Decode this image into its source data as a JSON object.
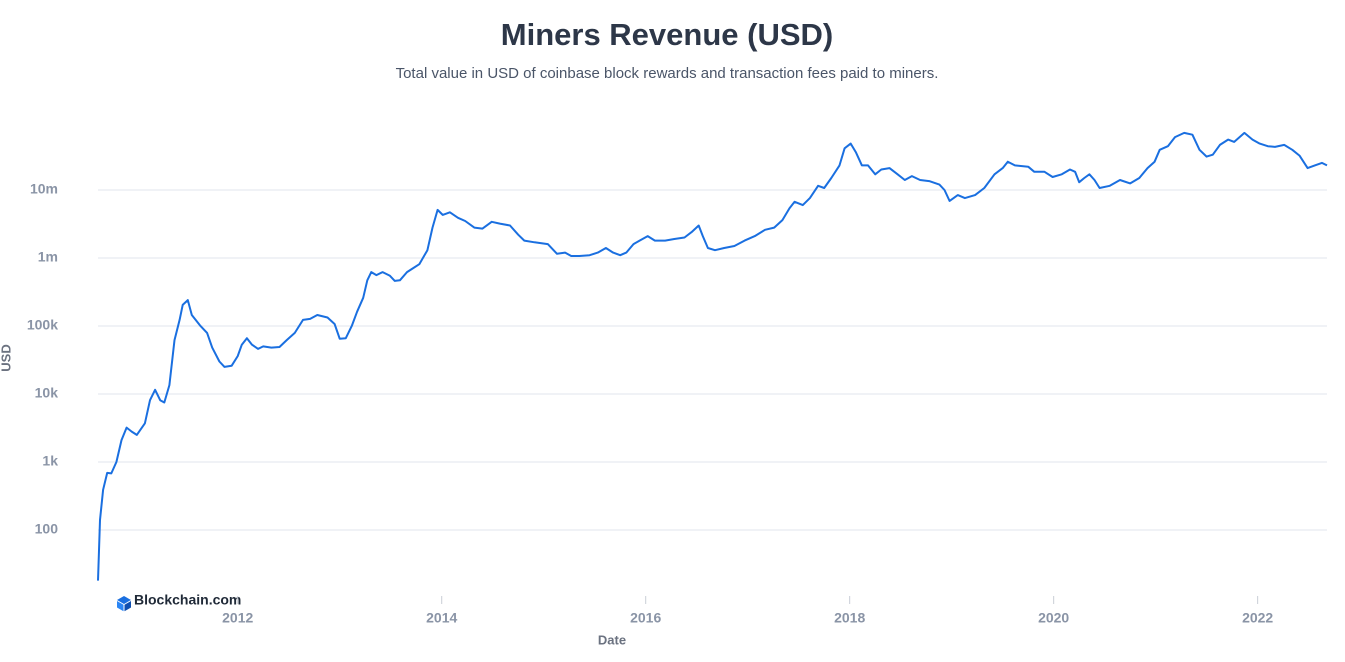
{
  "chart_data": {
    "type": "line",
    "title": "Miners Revenue (USD)",
    "subtitle": "Total value in USD of coinbase block rewards and transaction fees paid to miners.",
    "y_label": "USD",
    "x_label": "Date",
    "watermark": "Blockchain.com",
    "color": "#1a6fe0",
    "log_scale": true,
    "grid": true,
    "xlim": [
      2010.63,
      2022.68
    ],
    "xticks": [
      2012,
      2014,
      2016,
      2018,
      2020,
      2022
    ],
    "ylim": [
      15,
      70000000
    ],
    "yticks": [
      100,
      {
        "value": 1000,
        "label": "1k"
      },
      {
        "value": 10000,
        "label": "10k"
      },
      {
        "value": 100000,
        "label": "100k"
      },
      {
        "value": 1000000,
        "label": "1m"
      },
      {
        "value": 10000000,
        "label": "10m"
      }
    ],
    "x": [
      2010.63,
      2010.65,
      2010.68,
      2010.72,
      2010.76,
      2010.81,
      2010.86,
      2010.91,
      2010.96,
      2011.01,
      2011.09,
      2011.14,
      2011.19,
      2011.24,
      2011.28,
      2011.33,
      2011.38,
      2011.43,
      2011.46,
      2011.51,
      2011.55,
      2011.63,
      2011.7,
      2011.75,
      2011.82,
      2011.87,
      2011.94,
      2012.0,
      2012.04,
      2012.09,
      2012.14,
      2012.2,
      2012.25,
      2012.33,
      2012.41,
      2012.48,
      2012.56,
      2012.64,
      2012.71,
      2012.78,
      2012.88,
      2012.95,
      2013.0,
      2013.06,
      2013.12,
      2013.17,
      2013.23,
      2013.27,
      2013.31,
      2013.36,
      2013.42,
      2013.49,
      2013.54,
      2013.59,
      2013.66,
      2013.72,
      2013.78,
      2013.86,
      2013.91,
      2013.96,
      2014.01,
      2014.08,
      2014.16,
      2014.23,
      2014.32,
      2014.4,
      2014.49,
      2014.57,
      2014.67,
      2014.75,
      2014.81,
      2014.91,
      2015.04,
      2015.13,
      2015.21,
      2015.27,
      2015.35,
      2015.45,
      2015.53,
      2015.61,
      2015.68,
      2015.75,
      2015.81,
      2015.88,
      2015.94,
      2016.02,
      2016.09,
      2016.19,
      2016.28,
      2016.38,
      2016.45,
      2016.52,
      2016.56,
      2016.61,
      2016.68,
      2016.77,
      2016.87,
      2016.97,
      2017.07,
      2017.17,
      2017.26,
      2017.34,
      2017.41,
      2017.46,
      2017.54,
      2017.61,
      2017.69,
      2017.75,
      2017.82,
      2017.9,
      2017.95,
      2018.01,
      2018.06,
      2018.12,
      2018.18,
      2018.25,
      2018.31,
      2018.39,
      2018.47,
      2018.54,
      2018.61,
      2018.69,
      2018.78,
      2018.88,
      2018.93,
      2018.98,
      2019.06,
      2019.13,
      2019.23,
      2019.32,
      2019.42,
      2019.5,
      2019.55,
      2019.62,
      2019.75,
      2019.81,
      2019.91,
      2019.99,
      2020.08,
      2020.16,
      2020.21,
      2020.25,
      2020.3,
      2020.35,
      2020.4,
      2020.45,
      2020.55,
      2020.65,
      2020.75,
      2020.84,
      2020.92,
      2020.99,
      2021.04,
      2021.12,
      2021.19,
      2021.28,
      2021.36,
      2021.43,
      2021.5,
      2021.56,
      2021.63,
      2021.71,
      2021.77,
      2021.87,
      2021.95,
      2022.02,
      2022.1,
      2022.17,
      2022.26,
      2022.34,
      2022.41,
      2022.49,
      2022.56,
      2022.63,
      2022.68
    ],
    "values": [
      18,
      140,
      390,
      690,
      680,
      1000,
      2100,
      3200,
      2800,
      2500,
      3700,
      8100,
      11500,
      8100,
      7500,
      13500,
      62000,
      123000,
      204000,
      240000,
      145000,
      102000,
      79000,
      48000,
      30000,
      25000,
      26000,
      36000,
      53000,
      66000,
      53000,
      46000,
      50000,
      48000,
      49000,
      62000,
      79000,
      123000,
      127000,
      145000,
      133000,
      107000,
      65000,
      66000,
      102000,
      162000,
      260000,
      470000,
      620000,
      560000,
      620000,
      550000,
      460000,
      470000,
      620000,
      710000,
      810000,
      1300000,
      2800000,
      5100000,
      4300000,
      4700000,
      3900000,
      3500000,
      2800000,
      2700000,
      3400000,
      3200000,
      3000000,
      2200000,
      1800000,
      1700000,
      1600000,
      1150000,
      1200000,
      1070000,
      1070000,
      1100000,
      1200000,
      1400000,
      1200000,
      1100000,
      1200000,
      1600000,
      1800000,
      2100000,
      1800000,
      1800000,
      1900000,
      2000000,
      2400000,
      3000000,
      2100000,
      1400000,
      1300000,
      1400000,
      1500000,
      1800000,
      2100000,
      2600000,
      2800000,
      3600000,
      5400000,
      6700000,
      6000000,
      7600000,
      11500000,
      10700000,
      15000000,
      23000000,
      41000000,
      48000000,
      36000000,
      23000000,
      23000000,
      17000000,
      20000000,
      21000000,
      17000000,
      14000000,
      16000000,
      14000000,
      13500000,
      12000000,
      10000000,
      6900000,
      8400000,
      7600000,
      8400000,
      10700000,
      17000000,
      21000000,
      26000000,
      23000000,
      22000000,
      18500000,
      18500000,
      15500000,
      17000000,
      20000000,
      18500000,
      13000000,
      15000000,
      17000000,
      14000000,
      10700000,
      11500000,
      14000000,
      12500000,
      15000000,
      21000000,
      26000000,
      39000000,
      44000000,
      60000000,
      69000000,
      65000000,
      39000000,
      31000000,
      33000000,
      46000000,
      55000000,
      51000000,
      69000000,
      55000000,
      48000000,
      44000000,
      43000000,
      46000000,
      39000000,
      32000000,
      21000000,
      23000000,
      25000000,
      23000000
    ]
  }
}
